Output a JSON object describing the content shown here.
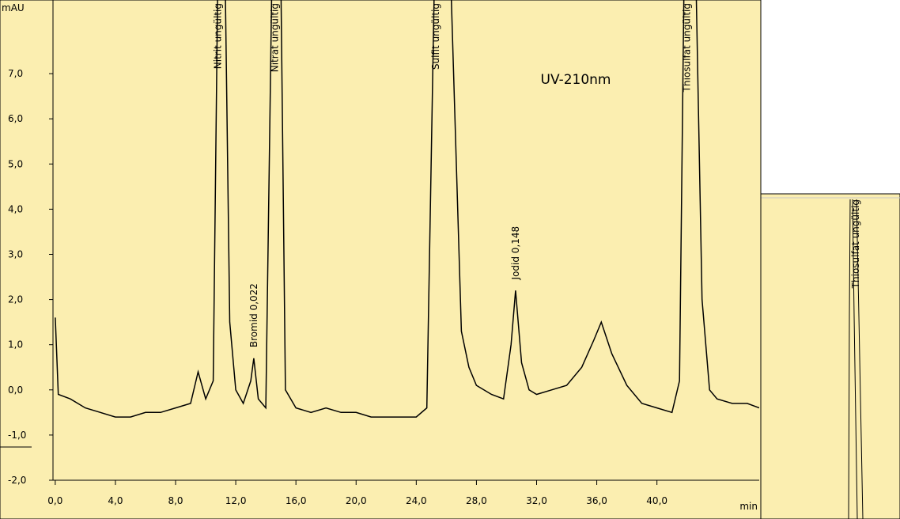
{
  "chart_data": {
    "type": "line",
    "title": "UV-210nm",
    "ylabel": "mAU",
    "xlabel": "min",
    "color": "#000000",
    "x": [
      0.0,
      0.2,
      1,
      2,
      3,
      4,
      5,
      6,
      7,
      8,
      9,
      9.5,
      10,
      10.5,
      10.8,
      11.3,
      11.6,
      12,
      12.5,
      13,
      13.2,
      13.5,
      14,
      14.4,
      15.0,
      15.3,
      16,
      17,
      18,
      19,
      20,
      21,
      22,
      23,
      24,
      24.7,
      25.2,
      26.3,
      27,
      27.5,
      28,
      29,
      29.8,
      30.3,
      30.6,
      31,
      31.5,
      32,
      33,
      34,
      35,
      35.8,
      36.3,
      37,
      38,
      39,
      40,
      41,
      41.5,
      41.8,
      42.6,
      43,
      43.5,
      44,
      45,
      46,
      46.8
    ],
    "values": [
      1.6,
      -0.1,
      -0.2,
      -0.4,
      -0.5,
      -0.6,
      -0.6,
      -0.5,
      -0.5,
      -0.4,
      -0.3,
      0.4,
      -0.2,
      0.2,
      9.0,
      9.0,
      1.5,
      0.0,
      -0.3,
      0.2,
      0.7,
      -0.2,
      -0.4,
      9.0,
      9.0,
      0.0,
      -0.4,
      -0.5,
      -0.4,
      -0.5,
      -0.5,
      -0.6,
      -0.6,
      -0.6,
      -0.6,
      -0.4,
      9.0,
      9.0,
      1.3,
      0.5,
      0.1,
      -0.1,
      -0.2,
      1.0,
      2.2,
      0.6,
      0.0,
      -0.1,
      0.0,
      0.1,
      0.5,
      1.1,
      1.5,
      0.8,
      0.1,
      -0.3,
      -0.4,
      -0.5,
      0.2,
      9.0,
      9.0,
      2.0,
      0.0,
      -0.2,
      -0.3,
      -0.3,
      -0.4
    ],
    "xlim": [
      -0.15,
      46.8
    ],
    "ylim": [
      -2.0,
      8.63
    ],
    "xticks": [
      {
        "value": 0,
        "label": "0,0"
      },
      {
        "value": 4,
        "label": "4,0"
      },
      {
        "value": 8,
        "label": "8,0"
      },
      {
        "value": 12,
        "label": "12,0"
      },
      {
        "value": 16,
        "label": "16,0"
      },
      {
        "value": 20,
        "label": "20,0"
      },
      {
        "value": 24,
        "label": "24,0"
      },
      {
        "value": 28,
        "label": "28,0"
      },
      {
        "value": 32,
        "label": "32,0"
      },
      {
        "value": 36,
        "label": "36,0"
      },
      {
        "value": 40,
        "label": "40,0"
      }
    ],
    "yticks": [
      {
        "value": -2,
        "label": "-2,0"
      },
      {
        "value": -1,
        "label": "-1,0"
      },
      {
        "value": 0,
        "label": "0,0"
      },
      {
        "value": 1,
        "label": "1,0"
      },
      {
        "value": 2,
        "label": "2,0"
      },
      {
        "value": 3,
        "label": "3,0"
      },
      {
        "value": 4,
        "label": "4,0"
      },
      {
        "value": 5,
        "label": "5,0"
      },
      {
        "value": 6,
        "label": "6,0"
      },
      {
        "value": 7,
        "label": "7,0"
      }
    ],
    "annotations": [
      {
        "text": "Nitrit ungültig",
        "x": 10.8
      },
      {
        "text": "Bromid 0,022",
        "x": 13.2,
        "y": 0.8
      },
      {
        "text": "Nitrat ungültig",
        "x": 14.6
      },
      {
        "text": "Sulfit ungültig",
        "x": 25.3
      },
      {
        "text": "Jodid 0,148",
        "x": 30.6,
        "y": 2.3
      },
      {
        "text": "Thiosulfat ungültig",
        "x": 42.0
      }
    ]
  },
  "inset": {
    "label": "Thiosulfat ungültig"
  }
}
